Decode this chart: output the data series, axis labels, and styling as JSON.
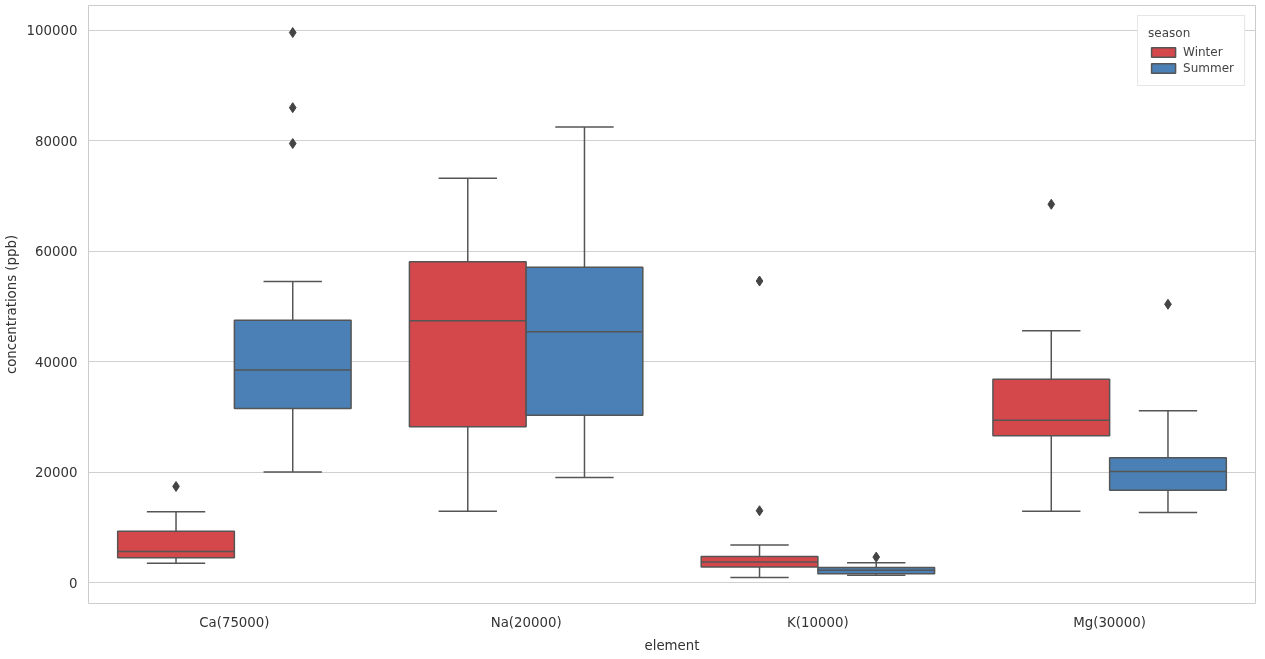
{
  "chart_data": {
    "type": "box",
    "xlabel": "element",
    "ylabel": "concentrations (ppb)",
    "legend_title": "season",
    "legend": "top right",
    "grid": "y",
    "marker": "diamond",
    "categories": [
      "Ca(75000)",
      "Na(20000)",
      "K(10000)",
      "Mg(30000)"
    ],
    "ylim": [
      -3800,
      104500
    ],
    "yticks": [
      0,
      20000,
      40000,
      60000,
      80000,
      100000
    ],
    "series": [
      {
        "name": "Winter",
        "color": "#d4484b",
        "boxes": [
          {
            "low": 3500,
            "q1": 4500,
            "median": 5600,
            "q3": 9300,
            "high": 12800,
            "outliers": [
              17400
            ]
          },
          {
            "low": 12900,
            "q1": 28200,
            "median": 47400,
            "q3": 58100,
            "high": 73200
          },
          {
            "low": 900,
            "q1": 2800,
            "median": 3700,
            "q3": 4700,
            "high": 6800,
            "outliers": [
              13000,
              54600
            ]
          },
          {
            "low": 12900,
            "q1": 26600,
            "median": 29400,
            "q3": 36800,
            "high": 45600,
            "outliers": [
              68500
            ]
          }
        ]
      },
      {
        "name": "Summer",
        "color": "#4a80b5",
        "boxes": [
          {
            "low": 20000,
            "q1": 31500,
            "median": 38500,
            "q3": 47500,
            "high": 54500,
            "outliers": [
              79500,
              86000,
              99600
            ]
          },
          {
            "low": 19000,
            "q1": 30300,
            "median": 45400,
            "q3": 57100,
            "high": 82500
          },
          {
            "low": 1300,
            "q1": 1600,
            "median": 2200,
            "q3": 2700,
            "high": 3600,
            "outliers": [
              4600
            ]
          },
          {
            "low": 12700,
            "q1": 16700,
            "median": 20100,
            "q3": 22600,
            "high": 31100,
            "outliers": [
              50400
            ]
          }
        ]
      }
    ]
  }
}
